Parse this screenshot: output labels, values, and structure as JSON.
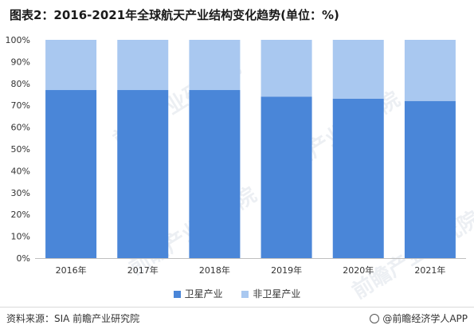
{
  "title": "图表2：2016-2021年全球航天产业结构变化趋势(单位：%)",
  "source_text": "资料来源：SIA 前瞻产业研究院",
  "brand_text": "@前瞻经济学人APP",
  "watermark_text": "前瞻产业研究院",
  "colors": {
    "satellite": "#4a86d8",
    "non_satellite": "#a9c8f0",
    "grid": "#e6e6e6",
    "axis": "#bfbfbf"
  },
  "chart_data": {
    "type": "bar",
    "stacked": true,
    "normalized": true,
    "categories": [
      "2016年",
      "2017年",
      "2018年",
      "2019年",
      "2020年",
      "2021年"
    ],
    "series": [
      {
        "name": "卫星产业",
        "values": [
          77,
          77,
          77,
          74,
          73,
          72
        ]
      },
      {
        "name": "非卫星产业",
        "values": [
          23,
          23,
          23,
          26,
          27,
          28
        ]
      }
    ],
    "ylim": [
      0,
      100
    ],
    "yticks": [
      "0%",
      "10%",
      "20%",
      "30%",
      "40%",
      "50%",
      "60%",
      "70%",
      "80%",
      "90%",
      "100%"
    ],
    "legend_position": "bottom",
    "grid": false
  }
}
